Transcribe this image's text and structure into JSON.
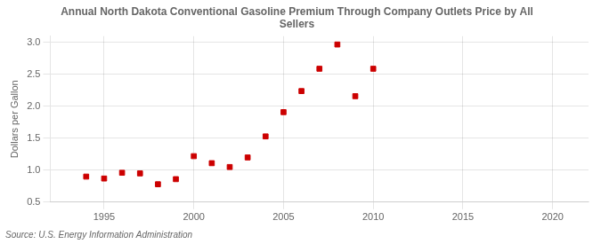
{
  "chart_data": {
    "type": "scatter",
    "title": "Annual North Dakota Conventional Gasoline Premium Through Company Outlets Price by All\nSellers",
    "ylabel": "Dollars per Gallon",
    "source": "Source: U.S. Energy Information Administration",
    "x": [
      1994,
      1995,
      1996,
      1997,
      1998,
      1999,
      2000,
      2001,
      2002,
      2003,
      2004,
      2005,
      2006,
      2007,
      2008,
      2009,
      2010
    ],
    "values": [
      0.9,
      0.87,
      0.96,
      0.95,
      0.78,
      0.86,
      1.22,
      1.11,
      1.05,
      1.2,
      1.53,
      1.91,
      2.24,
      2.59,
      2.97,
      2.16,
      2.59
    ],
    "color": "#CC0000",
    "marker": "square",
    "xlim": [
      1992,
      2022
    ],
    "ylim": [
      0.5,
      3.1
    ],
    "xticks": [
      1995,
      2000,
      2005,
      2010,
      2015,
      2020
    ],
    "yticks": [
      0.5,
      {
        "value": 1,
        "label": "1.0"
      },
      1.5,
      {
        "value": 2,
        "label": "2.0"
      },
      2.5,
      {
        "value": 3,
        "label": "3.0"
      }
    ],
    "grid": true
  }
}
